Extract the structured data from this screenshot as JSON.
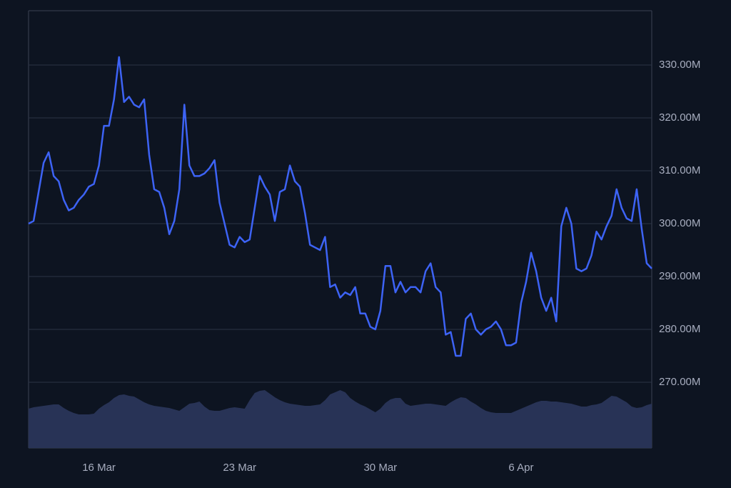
{
  "chart_data": {
    "type": "line",
    "color": "#3d63f5",
    "categories": [
      null,
      null,
      null,
      null,
      null,
      null,
      null,
      null,
      null,
      null,
      null,
      null,
      null,
      null,
      "16 Mar",
      null,
      null,
      null,
      null,
      null,
      null,
      null,
      null,
      null,
      null,
      null,
      null,
      null,
      null,
      null,
      null,
      null,
      null,
      null,
      null,
      null,
      null,
      null,
      null,
      null,
      null,
      null,
      "23 Mar",
      null,
      null,
      null,
      null,
      null,
      null,
      null,
      null,
      null,
      null,
      null,
      null,
      null,
      null,
      null,
      null,
      null,
      null,
      null,
      null,
      null,
      null,
      null,
      null,
      null,
      null,
      null,
      "30 Mar",
      null,
      null,
      null,
      null,
      null,
      null,
      null,
      null,
      null,
      null,
      null,
      null,
      null,
      null,
      null,
      null,
      null,
      null,
      null,
      null,
      null,
      null,
      null,
      null,
      null,
      null,
      null,
      "6 Apr",
      null,
      null,
      null,
      null,
      null,
      null,
      null,
      null,
      null,
      null,
      null,
      null,
      null,
      null,
      null,
      null,
      null,
      null,
      null,
      null,
      null,
      null,
      null,
      null,
      null,
      null
    ],
    "values": [
      300,
      300.5,
      306,
      311.5,
      313.5,
      309,
      308,
      304.5,
      302.5,
      303,
      304.5,
      305.5,
      307,
      307.5,
      311,
      318.5,
      318.5,
      323.5,
      331.5,
      323,
      324,
      322.5,
      322,
      323.5,
      313,
      306.5,
      306,
      303,
      298,
      300.5,
      306.5,
      322.5,
      311,
      309,
      309,
      309.5,
      310.5,
      312,
      304,
      300,
      296,
      295.5,
      297.5,
      296.5,
      297,
      303,
      309,
      307,
      305.5,
      300.5,
      306,
      306.5,
      311,
      308,
      307,
      302,
      296,
      295.5,
      295,
      297.5,
      288,
      288.5,
      286,
      287,
      286.5,
      288,
      283,
      283,
      280.5,
      280,
      283.5,
      292,
      292,
      287,
      289,
      287,
      288,
      288,
      287,
      291,
      292.5,
      288,
      287,
      279,
      279.5,
      275,
      275,
      282,
      283,
      280,
      279,
      280,
      280.5,
      281.5,
      280,
      277,
      277,
      277.5,
      285,
      289,
      294.5,
      291,
      286,
      283.5,
      286,
      281.5,
      299.5,
      303,
      300,
      291.5,
      291,
      291.5,
      294,
      298.5,
      297,
      299.5,
      301.5,
      306.5,
      303,
      301,
      300.5,
      306.5,
      299,
      292.5,
      291.5
    ],
    "volume": {
      "color": "#283356",
      "vlim": [
        0,
        100
      ],
      "values": [
        55,
        57,
        58,
        59,
        60,
        61,
        61,
        56,
        52,
        49,
        47,
        47,
        47,
        48,
        55,
        60,
        64,
        70,
        74,
        75,
        73,
        72,
        68,
        64,
        61,
        59,
        58,
        57,
        56,
        54,
        52,
        57,
        62,
        63,
        65,
        58,
        53,
        52,
        52,
        54,
        56,
        57,
        56,
        55,
        67,
        77,
        80,
        81,
        76,
        71,
        67,
        64,
        62,
        61,
        60,
        59,
        59,
        60,
        61,
        67,
        75,
        78,
        81,
        78,
        70,
        65,
        61,
        58,
        54,
        50,
        55,
        63,
        68,
        70,
        70,
        62,
        59,
        60,
        61,
        62,
        62,
        61,
        60,
        59,
        64,
        68,
        71,
        70,
        65,
        61,
        56,
        52,
        50,
        49,
        49,
        49,
        49,
        52,
        55,
        58,
        61,
        64,
        66,
        66,
        65,
        65,
        64,
        63,
        62,
        60,
        58,
        58,
        60,
        61,
        63,
        68,
        73,
        72,
        68,
        64,
        58,
        56,
        57,
        60,
        62
      ]
    },
    "ylim": [
      257.57,
      340.27
    ],
    "yticks": [
      {
        "value": 270,
        "label": "270.00M"
      },
      {
        "value": 280,
        "label": "280.00M"
      },
      {
        "value": 290,
        "label": "290.00M"
      },
      {
        "value": 300,
        "label": "300.00M"
      },
      {
        "value": 310,
        "label": "310.00M"
      },
      {
        "value": 320,
        "label": "320.00M"
      },
      {
        "value": 330,
        "label": "330.00M"
      }
    ],
    "grid": true
  }
}
